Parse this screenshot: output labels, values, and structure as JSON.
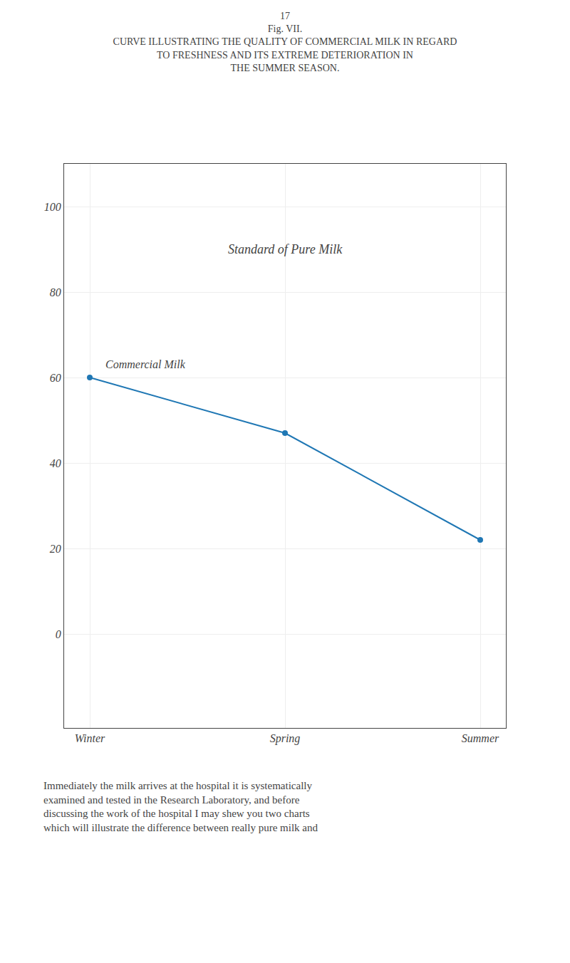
{
  "chart_data": {
    "type": "line",
    "title": [
      "17",
      "Fig. VII.",
      "CURVE ILLUSTRATING THE QUALITY OF COMMERCIAL MILK IN REGARD",
      "TO FRESHNESS AND ITS EXTREME DETERIORATION IN",
      "THE SUMMER SEASON."
    ],
    "categories": [
      "Winter",
      "Spring",
      "Summer"
    ],
    "series": [
      {
        "name": "Commercial Milk",
        "values": [
          60,
          47,
          22
        ]
      }
    ],
    "marker": "circle",
    "ylim": [
      -22,
      110
    ],
    "yticks": [
      0,
      20,
      40,
      60,
      80,
      100
    ],
    "grid": true,
    "annotations": [
      "Standard of Pure Milk",
      "Commercial Milk"
    ],
    "body_text": [
      "Immediately the milk arrives at the hospital it is systematically",
      "examined and tested in the Research Laboratory, and before",
      "discussing the work of the hospital I may shew you two charts",
      "which will illustrate the difference between really pure milk and"
    ]
  }
}
